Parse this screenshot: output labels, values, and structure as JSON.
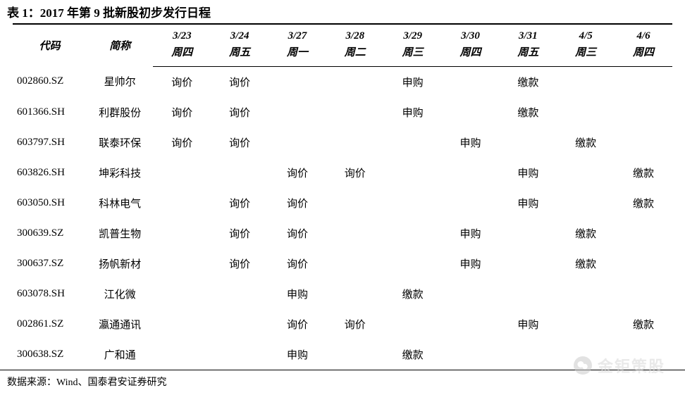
{
  "title": "表 1：2017 年第 9 批新股初步发行日程",
  "source": "数据来源：Wind、国泰君安证券研究",
  "watermark": "金钜策股",
  "columns": {
    "code": "代码",
    "name": "简称",
    "dates": [
      {
        "top": "3/23",
        "bottom": "周四"
      },
      {
        "top": "3/24",
        "bottom": "周五"
      },
      {
        "top": "3/27",
        "bottom": "周一"
      },
      {
        "top": "3/28",
        "bottom": "周二"
      },
      {
        "top": "3/29",
        "bottom": "周三"
      },
      {
        "top": "3/30",
        "bottom": "周四"
      },
      {
        "top": "3/31",
        "bottom": "周五"
      },
      {
        "top": "4/5",
        "bottom": "周三"
      },
      {
        "top": "4/6",
        "bottom": "周四"
      }
    ]
  },
  "rows": [
    {
      "code": "002860.SZ",
      "name": "星帅尔",
      "cells": [
        "询价",
        "询价",
        "",
        "",
        "申购",
        "",
        "缴款",
        "",
        ""
      ]
    },
    {
      "code": "601366.SH",
      "name": "利群股份",
      "cells": [
        "询价",
        "询价",
        "",
        "",
        "申购",
        "",
        "缴款",
        "",
        ""
      ]
    },
    {
      "code": "603797.SH",
      "name": "联泰环保",
      "cells": [
        "询价",
        "询价",
        "",
        "",
        "",
        "申购",
        "",
        "缴款",
        ""
      ]
    },
    {
      "code": "603826.SH",
      "name": "坤彩科技",
      "cells": [
        "",
        "",
        "询价",
        "询价",
        "",
        "",
        "申购",
        "",
        "缴款"
      ]
    },
    {
      "code": "603050.SH",
      "name": "科林电气",
      "cells": [
        "",
        "询价",
        "询价",
        "",
        "",
        "",
        "申购",
        "",
        "缴款"
      ]
    },
    {
      "code": "300639.SZ",
      "name": "凯普生物",
      "cells": [
        "",
        "询价",
        "询价",
        "",
        "",
        "申购",
        "",
        "缴款",
        ""
      ]
    },
    {
      "code": "300637.SZ",
      "name": "扬帆新材",
      "cells": [
        "",
        "询价",
        "询价",
        "",
        "",
        "申购",
        "",
        "缴款",
        ""
      ]
    },
    {
      "code": "603078.SH",
      "name": "江化微",
      "cells": [
        "",
        "",
        "申购",
        "",
        "缴款",
        "",
        "",
        "",
        ""
      ]
    },
    {
      "code": "002861.SZ",
      "name": "瀛通通讯",
      "cells": [
        "",
        "",
        "询价",
        "询价",
        "",
        "",
        "申购",
        "",
        "缴款"
      ]
    },
    {
      "code": "300638.SZ",
      "name": "广和通",
      "cells": [
        "",
        "",
        "申购",
        "",
        "缴款",
        "",
        "",
        "",
        ""
      ]
    }
  ],
  "style": {
    "background": "#ffffff",
    "text_color": "#000000",
    "border_color": "#000000",
    "title_fontsize": 17,
    "header_fontsize": 15,
    "body_fontsize": 15,
    "watermark_color": "#d8d8d8",
    "watermark_fontsize": 22
  }
}
